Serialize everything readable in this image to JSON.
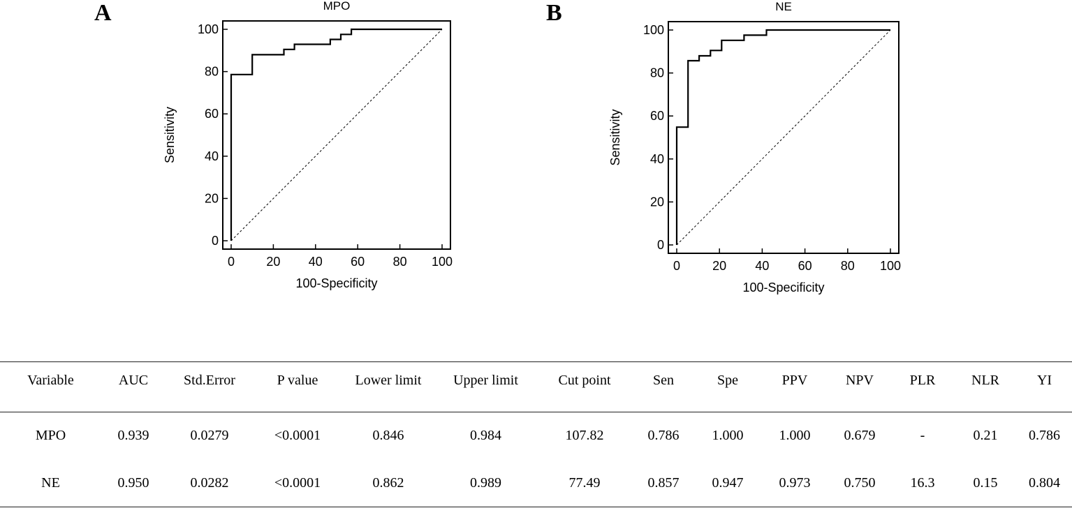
{
  "panels": {
    "a": "A",
    "b": "B"
  },
  "chart_data": [
    {
      "type": "line",
      "title": "MPO",
      "xlabel": "100-Specificity",
      "ylabel": "Sensitivity",
      "xlim": [
        0,
        100
      ],
      "ylim": [
        0,
        100
      ],
      "xticks": [
        0,
        20,
        40,
        60,
        80,
        100
      ],
      "yticks": [
        0,
        20,
        40,
        60,
        80,
        100
      ],
      "series": [
        {
          "name": "ROC",
          "x": [
            0,
            0,
            10,
            10,
            25,
            25,
            30,
            30,
            47,
            47,
            52,
            52,
            57,
            57,
            100
          ],
          "y": [
            0,
            78.6,
            78.6,
            88,
            88,
            90.5,
            90.5,
            92.9,
            92.9,
            95.2,
            95.2,
            97.6,
            97.6,
            100,
            100
          ]
        },
        {
          "name": "reference",
          "x": [
            0,
            100
          ],
          "y": [
            0,
            100
          ]
        }
      ]
    },
    {
      "type": "line",
      "title": "NE",
      "xlabel": "100-Specificity",
      "ylabel": "Sensitivity",
      "xlim": [
        0,
        100
      ],
      "ylim": [
        0,
        100
      ],
      "xticks": [
        0,
        20,
        40,
        60,
        80,
        100
      ],
      "yticks": [
        0,
        20,
        40,
        60,
        80,
        100
      ],
      "series": [
        {
          "name": "ROC",
          "x": [
            0,
            0,
            5.3,
            5.3,
            10.5,
            10.5,
            15.8,
            15.8,
            21,
            21,
            31.5,
            31.5,
            42,
            42,
            100
          ],
          "y": [
            0,
            54.8,
            54.8,
            85.7,
            85.7,
            88,
            88,
            90.5,
            90.5,
            95.2,
            95.2,
            97.6,
            97.6,
            100,
            100
          ]
        },
        {
          "name": "reference",
          "x": [
            0,
            100
          ],
          "y": [
            0,
            100
          ]
        }
      ]
    }
  ],
  "table": {
    "headers": [
      "Variable",
      "AUC",
      "Std.Error",
      "P value",
      "Lower limit",
      "Upper limit",
      "Cut point",
      "Sen",
      "Spe",
      "PPV",
      "NPV",
      "PLR",
      "NLR",
      "YI"
    ],
    "rows": [
      [
        "MPO",
        "0.939",
        "0.0279",
        "<0.0001",
        "0.846",
        "0.984",
        "107.82",
        "0.786",
        "1.000",
        "1.000",
        "0.679",
        "-",
        "0.21",
        "0.786"
      ],
      [
        "NE",
        "0.950",
        "0.0282",
        "<0.0001",
        "0.862",
        "0.989",
        "77.49",
        "0.857",
        "0.947",
        "0.973",
        "0.750",
        "16.3",
        "0.15",
        "0.804"
      ]
    ]
  }
}
